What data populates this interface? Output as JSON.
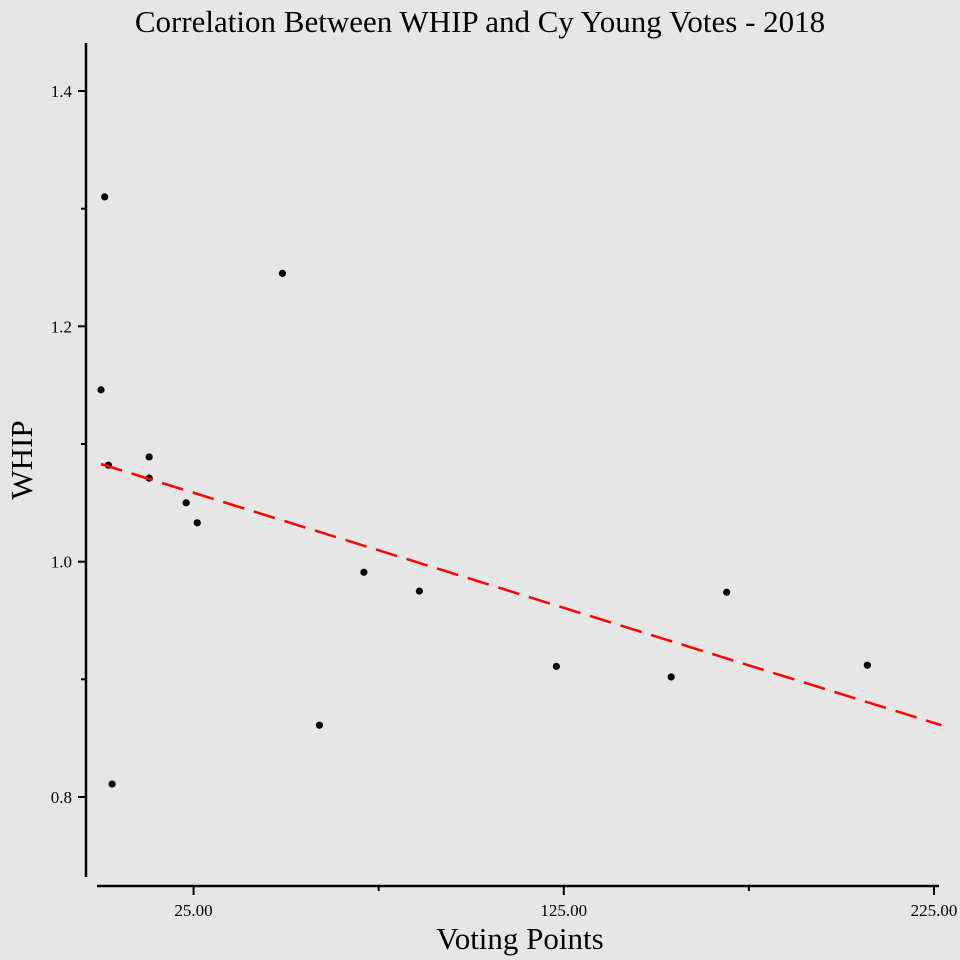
{
  "chart_data": {
    "type": "scatter",
    "title": "Correlation Between WHIP and Cy Young Votes - 2018",
    "xlabel": "Voting Points",
    "ylabel": "WHIP",
    "xlim": [
      0,
      225
    ],
    "ylim": [
      0.73,
      1.44
    ],
    "x_ticks": [
      {
        "value": 25,
        "label": "25.00"
      },
      {
        "value": 125,
        "label": "125.00"
      },
      {
        "value": 225,
        "label": "225.00"
      }
    ],
    "x_minor_ticks": [
      75,
      175
    ],
    "y_ticks": [
      {
        "value": 0.8,
        "label": "0.8"
      },
      {
        "value": 1.0,
        "label": "1.0"
      },
      {
        "value": 1.2,
        "label": "1.2"
      },
      {
        "value": 1.4,
        "label": "1.4"
      }
    ],
    "y_minor_ticks": [
      0.9,
      1.1,
      1.3
    ],
    "grid": false,
    "marker_color": "#000000",
    "points": [
      {
        "x": 0,
        "y": 1.146
      },
      {
        "x": 1,
        "y": 1.31
      },
      {
        "x": 2,
        "y": 1.082
      },
      {
        "x": 3,
        "y": 0.811
      },
      {
        "x": 13,
        "y": 1.089
      },
      {
        "x": 13,
        "y": 1.071
      },
      {
        "x": 23,
        "y": 1.05
      },
      {
        "x": 26,
        "y": 1.033
      },
      {
        "x": 49,
        "y": 1.245
      },
      {
        "x": 59,
        "y": 0.861
      },
      {
        "x": 71,
        "y": 0.991
      },
      {
        "x": 86,
        "y": 0.975
      },
      {
        "x": 123,
        "y": 0.911
      },
      {
        "x": 154,
        "y": 0.902
      },
      {
        "x": 169,
        "y": 0.974
      },
      {
        "x": 207,
        "y": 0.912
      }
    ],
    "trendline": {
      "style": "dashed",
      "color": "#ff0000",
      "x": [
        0,
        227
      ],
      "y": [
        1.083,
        0.861
      ]
    }
  }
}
